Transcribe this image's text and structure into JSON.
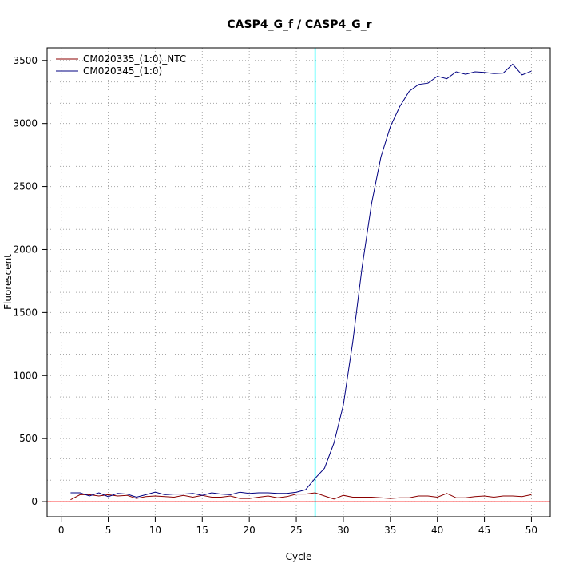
{
  "chart_data": {
    "type": "line",
    "title": "CASP4_G_f / CASP4_G_r",
    "xlabel": "Cycle",
    "ylabel": "Fluorescent",
    "xlim": [
      -1.5,
      52.0
    ],
    "ylim": [
      -120,
      3600
    ],
    "x_ticks": [
      0,
      5,
      10,
      15,
      20,
      25,
      30,
      35,
      40,
      45,
      50
    ],
    "y_ticks": [
      0,
      500,
      1000,
      1500,
      2000,
      2500,
      3000,
      3500
    ],
    "x_grid": [
      0,
      5,
      10,
      15,
      20,
      25,
      30,
      35,
      40,
      45,
      50
    ],
    "y_grid": [
      0,
      170,
      340,
      500,
      660,
      830,
      1000,
      1170,
      1340,
      1500,
      1660,
      1830,
      2000,
      2160,
      2330,
      2500,
      2660,
      2830,
      3000,
      3160,
      3330,
      3500
    ],
    "grid": true,
    "legend_position": "top-left",
    "threshold": {
      "x": 27,
      "color": "#00ffff"
    },
    "baseline": {
      "y": 0,
      "color": "#ff0000"
    },
    "series": [
      {
        "name": "CM020335_(1:0)_NTC",
        "color": "#8b0000",
        "x": [
          1,
          2,
          3,
          4,
          5,
          6,
          7,
          8,
          9,
          10,
          11,
          12,
          13,
          14,
          15,
          16,
          17,
          18,
          19,
          20,
          21,
          22,
          23,
          24,
          25,
          26,
          27,
          28,
          29,
          30,
          31,
          32,
          33,
          34,
          35,
          36,
          37,
          38,
          39,
          40,
          41,
          42,
          43,
          44,
          45,
          46,
          47,
          48,
          49,
          50
        ],
        "values": [
          15,
          55,
          55,
          45,
          55,
          45,
          50,
          25,
          40,
          45,
          40,
          35,
          50,
          35,
          50,
          35,
          35,
          45,
          25,
          25,
          35,
          45,
          30,
          40,
          60,
          60,
          70,
          45,
          20,
          50,
          35,
          35,
          35,
          30,
          25,
          30,
          30,
          45,
          45,
          35,
          65,
          30,
          30,
          40,
          45,
          35,
          45,
          45,
          40,
          55
        ]
      },
      {
        "name": "CM020345_(1:0)",
        "color": "#000080",
        "x": [
          1,
          2,
          3,
          4,
          5,
          6,
          7,
          8,
          9,
          10,
          11,
          12,
          13,
          14,
          15,
          16,
          17,
          18,
          19,
          20,
          21,
          22,
          23,
          24,
          25,
          26,
          27,
          28,
          29,
          30,
          31,
          32,
          33,
          34,
          35,
          36,
          37,
          38,
          39,
          40,
          41,
          42,
          43,
          44,
          45,
          46,
          47,
          48,
          49,
          50
        ],
        "values": [
          70,
          70,
          45,
          70,
          40,
          65,
          60,
          35,
          55,
          75,
          55,
          60,
          60,
          65,
          50,
          70,
          60,
          55,
          75,
          65,
          70,
          70,
          65,
          65,
          75,
          95,
          185,
          265,
          465,
          765,
          1265,
          1865,
          2365,
          2735,
          2975,
          3135,
          3255,
          3310,
          3320,
          3375,
          3355,
          3410,
          3390,
          3410,
          3405,
          3395,
          3400,
          3470,
          3385,
          3415
        ]
      }
    ]
  }
}
